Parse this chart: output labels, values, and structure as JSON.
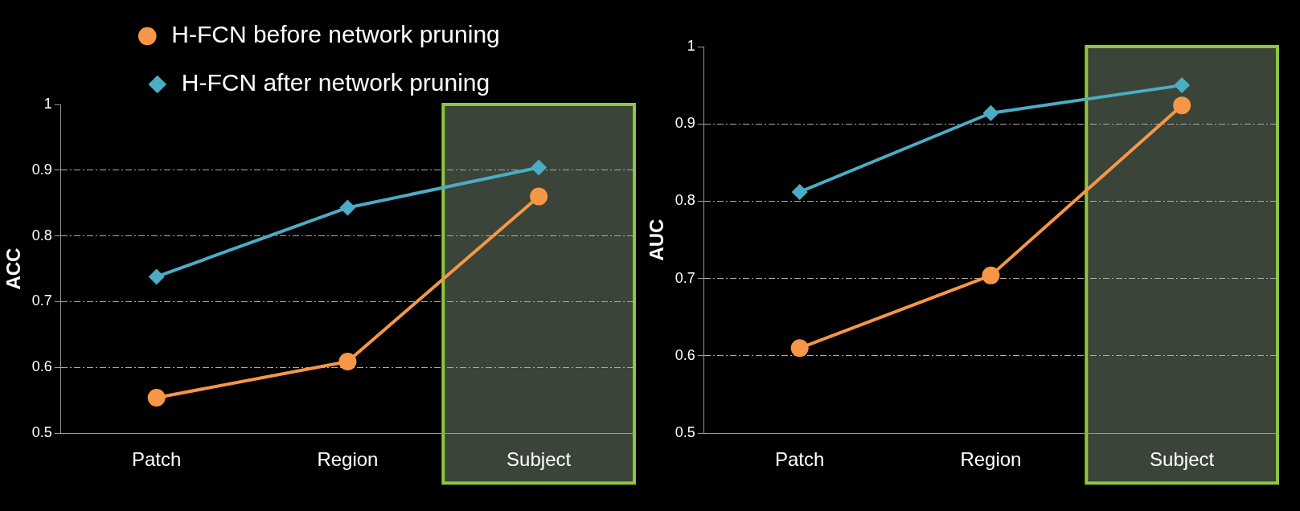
{
  "chart_data": [
    {
      "type": "line",
      "ylabel": "ACC",
      "categories": [
        "Patch",
        "Region",
        "Subject"
      ],
      "series": [
        {
          "name": "H-FCN before network pruning",
          "color": "#f79646",
          "marker": "circle",
          "values": [
            0.554,
            0.609,
            0.86
          ]
        },
        {
          "name": "H-FCN after network pruning",
          "color": "#4bacc6",
          "marker": "diamond",
          "values": [
            0.738,
            0.843,
            0.904
          ]
        }
      ],
      "ylim": [
        0.5,
        1
      ],
      "yticks": [
        0.5,
        0.6,
        0.7,
        0.8,
        0.9,
        1
      ],
      "grid": "y",
      "legend": "top",
      "bands": [
        {
          "axis": "x",
          "from": "Subject",
          "to": "Subject",
          "color": "#3a4438"
        }
      ]
    },
    {
      "type": "line",
      "ylabel": "AUC",
      "categories": [
        "Patch",
        "Region",
        "Subject"
      ],
      "series": [
        {
          "color": "#f79646",
          "marker": "circle",
          "values": [
            0.61,
            0.704,
            0.924
          ]
        },
        {
          "color": "#4bacc6",
          "marker": "diamond",
          "values": [
            0.812,
            0.914,
            0.95
          ]
        }
      ],
      "ylim": [
        0.5,
        1
      ],
      "yticks": [
        0.5,
        0.6,
        0.7,
        0.8,
        0.9,
        1
      ],
      "grid": "y",
      "legend": false,
      "bands": [
        {
          "axis": "x",
          "from": "Subject",
          "to": "Subject",
          "color": "#3a4438"
        }
      ]
    }
  ]
}
